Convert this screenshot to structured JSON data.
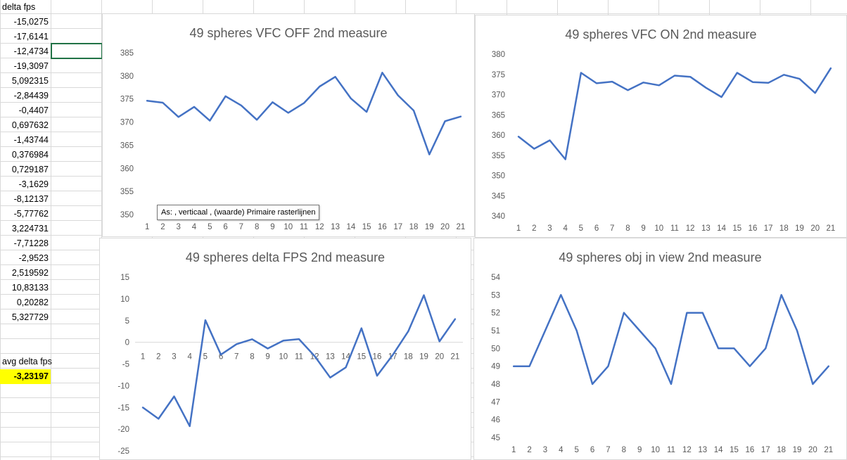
{
  "sheet": {
    "header_label": "delta fps",
    "values": [
      "-15,0275",
      "-17,6141",
      "-12,4734",
      "-19,3097",
      "5,092315",
      "-2,84439",
      "-0,4407",
      "0,697632",
      "-1,43744",
      "0,376984",
      "0,729187",
      "-3,1629",
      "-8,12137",
      "-5,77762",
      "3,224731",
      "-7,71228",
      "-2,9523",
      "2,519592",
      "10,83133",
      "0,20282",
      "5,327729"
    ],
    "avg_label": "avg delta fps",
    "avg_value": "-3,23197"
  },
  "tooltip": {
    "text": "As: , verticaal , (waarde)  Primaire rasterlijnen"
  },
  "chart_data": [
    {
      "type": "line",
      "title": "49 spheres VFC OFF 2nd measure",
      "categories": [
        "1",
        "2",
        "3",
        "4",
        "5",
        "6",
        "7",
        "8",
        "9",
        "10",
        "11",
        "12",
        "13",
        "14",
        "15",
        "16",
        "17",
        "18",
        "19",
        "20",
        "21"
      ],
      "series": [
        {
          "values": [
            374.6,
            374.2,
            371.1,
            373.3,
            370.3,
            375.6,
            373.6,
            370.5,
            374.3,
            372.0,
            374.1,
            377.7,
            379.8,
            375.1,
            372.2,
            380.7,
            375.8,
            372.5,
            363.0,
            370.2,
            371.2
          ]
        }
      ],
      "ylim": [
        350,
        385
      ],
      "yticks": [
        350,
        355,
        360,
        365,
        370,
        375,
        380,
        385
      ],
      "color": "#4472c4",
      "grid": false
    },
    {
      "type": "line",
      "title": "49 spheres VFC ON 2nd measure",
      "categories": [
        "1",
        "2",
        "3",
        "4",
        "5",
        "6",
        "7",
        "8",
        "9",
        "10",
        "11",
        "12",
        "13",
        "14",
        "15",
        "16",
        "17",
        "18",
        "19",
        "20",
        "21"
      ],
      "series": [
        {
          "values": [
            359.6,
            356.6,
            358.7,
            354.0,
            375.4,
            372.8,
            373.2,
            371.1,
            373.0,
            372.3,
            374.7,
            374.4,
            371.7,
            369.4,
            375.4,
            373.1,
            372.9,
            374.9,
            373.9,
            370.4,
            376.5
          ]
        }
      ],
      "ylim": [
        340,
        380
      ],
      "yticks": [
        340,
        345,
        350,
        355,
        360,
        365,
        370,
        375,
        380
      ],
      "color": "#4472c4",
      "grid": false
    },
    {
      "type": "line",
      "title": "49 spheres delta FPS 2nd measure",
      "categories": [
        "1",
        "2",
        "3",
        "4",
        "5",
        "6",
        "7",
        "8",
        "9",
        "10",
        "11",
        "12",
        "13",
        "14",
        "15",
        "16",
        "17",
        "18",
        "19",
        "20",
        "21"
      ],
      "series": [
        {
          "values": [
            -15.0275,
            -17.6141,
            -12.4734,
            -19.3097,
            5.092315,
            -2.84439,
            -0.4407,
            0.697632,
            -1.43744,
            0.376984,
            0.729187,
            -3.1629,
            -8.12137,
            -5.77762,
            3.224731,
            -7.71228,
            -2.9523,
            2.519592,
            10.83133,
            0.20282,
            5.327729
          ]
        }
      ],
      "ylim": [
        -25,
        15
      ],
      "yticks": [
        -25,
        -20,
        -15,
        -10,
        -5,
        0,
        5,
        10,
        15
      ],
      "color": "#4472c4",
      "grid": false
    },
    {
      "type": "line",
      "title": "49 spheres obj in view 2nd measure",
      "categories": [
        "1",
        "2",
        "3",
        "4",
        "5",
        "6",
        "7",
        "8",
        "9",
        "10",
        "11",
        "12",
        "13",
        "14",
        "15",
        "16",
        "17",
        "18",
        "19",
        "20",
        "21"
      ],
      "series": [
        {
          "values": [
            49,
            49,
            51,
            53,
            51,
            48,
            49,
            52,
            51,
            50,
            48,
            52,
            52,
            50,
            50,
            49,
            50,
            53,
            51,
            48,
            49
          ]
        }
      ],
      "ylim": [
        45,
        54
      ],
      "yticks": [
        45,
        46,
        47,
        48,
        49,
        50,
        51,
        52,
        53,
        54
      ],
      "color": "#4472c4",
      "grid": false
    }
  ]
}
